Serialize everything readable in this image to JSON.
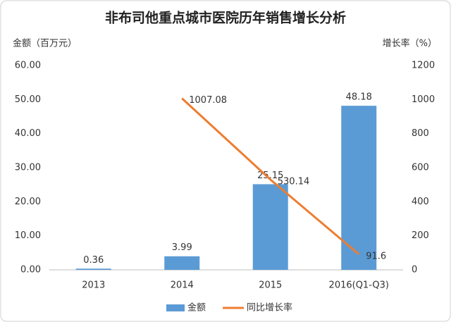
{
  "chart_data": {
    "type": "combo",
    "title": "非布司他重点城市医院历年销售增长分析",
    "y_label": "金额（百万元）",
    "y2_label": "增长率（%）",
    "categories": [
      "2013",
      "2014",
      "2015",
      "2016(Q1-Q3)"
    ],
    "series": [
      {
        "name": "金额",
        "type": "bar",
        "color": "#5b9bd5",
        "values": [
          0.36,
          3.99,
          25.15,
          48.18
        ]
      },
      {
        "name": "同比增长率",
        "type": "line",
        "axis": "y2",
        "color": "#ed7d31",
        "values": [
          null,
          1007.08,
          530.14,
          91.6
        ]
      }
    ],
    "ylim": [
      0,
      60
    ],
    "yticks": [
      {
        "value": 0,
        "label": "0.00"
      },
      {
        "value": 10,
        "label": "10.00"
      },
      {
        "value": 20,
        "label": "20.00"
      },
      {
        "value": 30,
        "label": "30.00"
      },
      {
        "value": 40,
        "label": "40.00"
      },
      {
        "value": 50,
        "label": "50.00"
      },
      {
        "value": 60,
        "label": "60.00"
      }
    ],
    "y2lim": [
      0,
      1200
    ],
    "y2ticks": [
      0,
      200,
      400,
      600,
      800,
      1000,
      1200
    ],
    "legend": "bottom"
  }
}
